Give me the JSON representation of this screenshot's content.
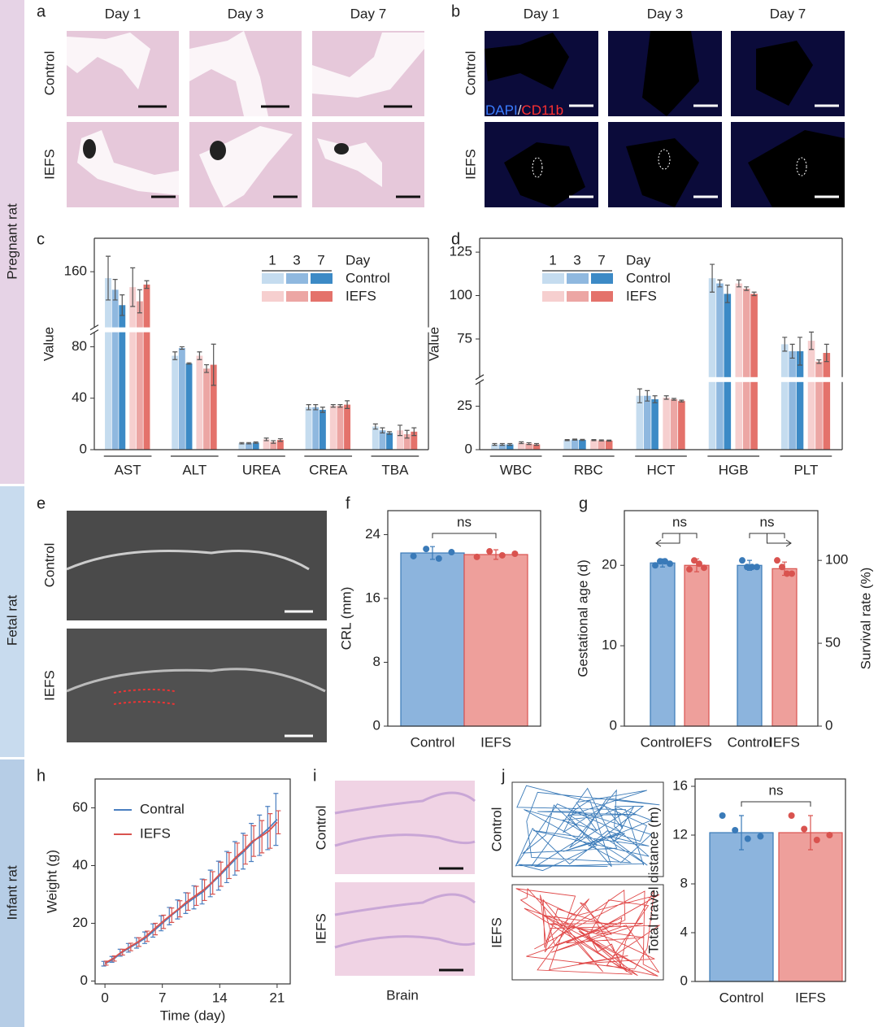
{
  "side_labels": [
    "Pregnant rat",
    "Fetal rat",
    "Infant rat"
  ],
  "panel_letters": [
    "a",
    "b",
    "c",
    "d",
    "e",
    "f",
    "g",
    "h",
    "i",
    "j"
  ],
  "panel_a": {
    "columns": [
      "Day 1",
      "Day 3",
      "Day 7"
    ],
    "rows": [
      "Control",
      "IEFS"
    ]
  },
  "panel_b": {
    "columns": [
      "Day 1",
      "Day 3",
      "Day 7"
    ],
    "rows": [
      "Control",
      "IEFS"
    ],
    "stain_dapi": "DAPI",
    "stain_sep": "/",
    "stain_cd11b": "CD11b"
  },
  "panel_e": {
    "rows": [
      "Control",
      "IEFS"
    ]
  },
  "panel_i": {
    "rows": [
      "Control",
      "IEFS"
    ],
    "caption": "Brain"
  },
  "panel_j_tracks": {
    "rows": [
      "Control",
      "IEFS"
    ]
  },
  "chart_data": [
    {
      "type": "broken_grouped_bar",
      "ylabel": "Value",
      "categories": [
        "AST",
        "ALT",
        "UREA",
        "CREA",
        "TBA"
      ],
      "ylim": [
        0,
        186
      ],
      "ybreak": [
        90,
        118
      ],
      "yticks": [
        0,
        40,
        80,
        160
      ],
      "legend": {
        "title": "Day",
        "days": [
          "1",
          "3",
          "7"
        ]
      },
      "series": [
        {
          "name": "Control",
          "colors": [
            "#c5dcef",
            "#8fb8df",
            "#3c8ac6"
          ],
          "days": [
            {
              "values": [
                155,
                73,
                5,
                33,
                18
              ],
              "errors": [
                17,
                3,
                0.5,
                2,
                2
              ]
            },
            {
              "values": [
                146,
                79,
                5,
                33,
                15
              ],
              "errors": [
                8,
                1,
                0.5,
                2,
                2
              ]
            },
            {
              "values": [
                134,
                67,
                5.5,
                31,
                13
              ],
              "errors": [
                8,
                0.5,
                0.5,
                2,
                1
              ]
            }
          ]
        },
        {
          "name": "IEFS",
          "colors": [
            "#f6cfcf",
            "#eca6a4",
            "#e4726b"
          ],
          "days": [
            {
              "values": [
                148,
                73,
                8,
                34,
                15
              ],
              "errors": [
                15,
                3,
                1,
                1,
                4
              ]
            },
            {
              "values": [
                137,
                63,
                6,
                34,
                12
              ],
              "errors": [
                9,
                3,
                1,
                1,
                3
              ]
            },
            {
              "values": [
                150,
                66,
                7.5,
                35,
                14
              ],
              "errors": [
                3,
                16,
                1,
                3,
                3
              ]
            }
          ]
        }
      ]
    },
    {
      "type": "broken_grouped_bar",
      "ylabel": "Value",
      "categories": [
        "WBC",
        "RBC",
        "HCT",
        "HGB",
        "PLT"
      ],
      "ylim": [
        0,
        133
      ],
      "ybreak": [
        38,
        54
      ],
      "yticks": [
        0,
        25,
        75,
        100,
        125
      ],
      "legend": {
        "title": "Day",
        "days": [
          "1",
          "3",
          "7"
        ]
      },
      "series": [
        {
          "name": "Control",
          "colors": [
            "#c5dcef",
            "#8fb8df",
            "#3c8ac6"
          ],
          "days": [
            {
              "values": [
                3,
                5.5,
                31,
                110,
                72
              ],
              "errors": [
                0.5,
                0.3,
                4,
                8,
                4
              ]
            },
            {
              "values": [
                3,
                5.8,
                31,
                107,
                68
              ],
              "errors": [
                0.5,
                0.3,
                3,
                2,
                4
              ]
            },
            {
              "values": [
                3,
                5.6,
                29,
                101,
                68
              ],
              "errors": [
                0.5,
                0.3,
                2,
                5,
                8
              ]
            }
          ]
        },
        {
          "name": "IEFS",
          "colors": [
            "#f6cfcf",
            "#eca6a4",
            "#e4726b"
          ],
          "days": [
            {
              "values": [
                4,
                5.5,
                30,
                107,
                74
              ],
              "errors": [
                0.5,
                0.3,
                1,
                2,
                5
              ]
            },
            {
              "values": [
                3.5,
                5.3,
                29,
                104,
                62
              ],
              "errors": [
                0.5,
                0.3,
                0.5,
                1,
                1
              ]
            },
            {
              "values": [
                3,
                5.2,
                28,
                101,
                67
              ],
              "errors": [
                0.5,
                0.3,
                0.5,
                1,
                5
              ]
            }
          ]
        }
      ]
    },
    {
      "type": "bar",
      "ylabel": "CRL (mm)",
      "categories": [
        "Control",
        "IEFS"
      ],
      "values": [
        21.7,
        21.5
      ],
      "errors": [
        0.8,
        0.6
      ],
      "points": [
        [
          21.3,
          22.2,
          21.0,
          21.8
        ],
        [
          21.2,
          21.9,
          21.4,
          21.6
        ]
      ],
      "colors": [
        "#8cb4dd",
        "#ee9f9b"
      ],
      "edge_colors": [
        "#3a7ab8",
        "#d9534f"
      ],
      "ylim": [
        0,
        27
      ],
      "yticks": [
        0,
        8,
        16,
        24
      ],
      "annotations": [
        "ns"
      ]
    },
    {
      "type": "dual_axis_bar",
      "ylabel": "Gestational age (d)",
      "y2label": "Survival rate (%)",
      "categories": [
        "Control",
        "IEFS",
        "Control",
        "IEFS"
      ],
      "axes": [
        "y",
        "y",
        "y2",
        "y2"
      ],
      "values": [
        20.3,
        20.0,
        97,
        95
      ],
      "errors": [
        0.5,
        0.8,
        3,
        4
      ],
      "points": [
        [
          20.0,
          20.5,
          20.5,
          20.2
        ],
        [
          19.5,
          20.6,
          20.2,
          19.7
        ],
        [
          100,
          96,
          96,
          96
        ],
        [
          100,
          96,
          92,
          92
        ]
      ],
      "colors": [
        "#8cb4dd",
        "#ee9f9b",
        "#8cb4dd",
        "#ee9f9b"
      ],
      "edge_colors": [
        "#3a7ab8",
        "#d9534f",
        "#3a7ab8",
        "#d9534f"
      ],
      "ylim": [
        0,
        26.8
      ],
      "yticks": [
        0,
        10,
        20
      ],
      "y2lim": [
        0,
        130
      ],
      "y2ticks": [
        0,
        50,
        100
      ],
      "annotations": [
        "ns",
        "ns"
      ]
    },
    {
      "type": "line",
      "xlabel": "Time (day)",
      "ylabel": "Weight (g)",
      "x": [
        0,
        1,
        2,
        3,
        4,
        5,
        6,
        7,
        8,
        9,
        10,
        11,
        12,
        13,
        14,
        15,
        16,
        17,
        18,
        19,
        20,
        21
      ],
      "xlim": [
        -1.2,
        22.6
      ],
      "xticks": [
        0,
        7,
        14,
        21
      ],
      "ylim": [
        -1,
        70
      ],
      "yticks": [
        0,
        20,
        40,
        60
      ],
      "series": [
        {
          "name": "Contral",
          "color": "#4a7fc0",
          "values": [
            6,
            7.5,
            9.8,
            11.5,
            13.2,
            15,
            17.5,
            20,
            22.5,
            24.8,
            27,
            29,
            31,
            33.8,
            36.5,
            39.5,
            42.5,
            45,
            48,
            50.5,
            53,
            56
          ],
          "errors": [
            0.8,
            1,
            1.2,
            1.5,
            1.8,
            2,
            2.3,
            2.6,
            3,
            3.3,
            3.6,
            4,
            4.3,
            4.6,
            5,
            5.4,
            5.8,
            6.2,
            6.6,
            7,
            7.5,
            9
          ]
        },
        {
          "name": "IEFS",
          "color": "#d9534f",
          "values": [
            6.2,
            7.8,
            10,
            11.8,
            13.5,
            15.5,
            18,
            20.5,
            22.8,
            25,
            27.5,
            29.5,
            31.5,
            34,
            37,
            40,
            43,
            45.5,
            48.5,
            50,
            52,
            55
          ],
          "errors": [
            0.7,
            0.9,
            1,
            1.3,
            1.5,
            1.8,
            2,
            2.3,
            2.5,
            2.8,
            3,
            3.3,
            3.6,
            3.9,
            4.2,
            4.5,
            4.8,
            5,
            5.3,
            5.6,
            6,
            4
          ]
        }
      ]
    },
    {
      "type": "bar",
      "ylabel": "Total travel distance (m)",
      "categories": [
        "Control",
        "IEFS"
      ],
      "values": [
        12.2,
        12.2
      ],
      "errors": [
        1.4,
        1.4
      ],
      "points": [
        [
          13.6,
          12.4,
          11.7,
          11.9
        ],
        [
          13.6,
          12.5,
          11.6,
          12.0
        ]
      ],
      "colors": [
        "#8cb4dd",
        "#ee9f9b"
      ],
      "edge_colors": [
        "#3a7ab8",
        "#d9534f"
      ],
      "ylim": [
        0,
        16.6
      ],
      "yticks": [
        0,
        4,
        8,
        12,
        16
      ],
      "annotations": [
        "ns"
      ]
    }
  ]
}
